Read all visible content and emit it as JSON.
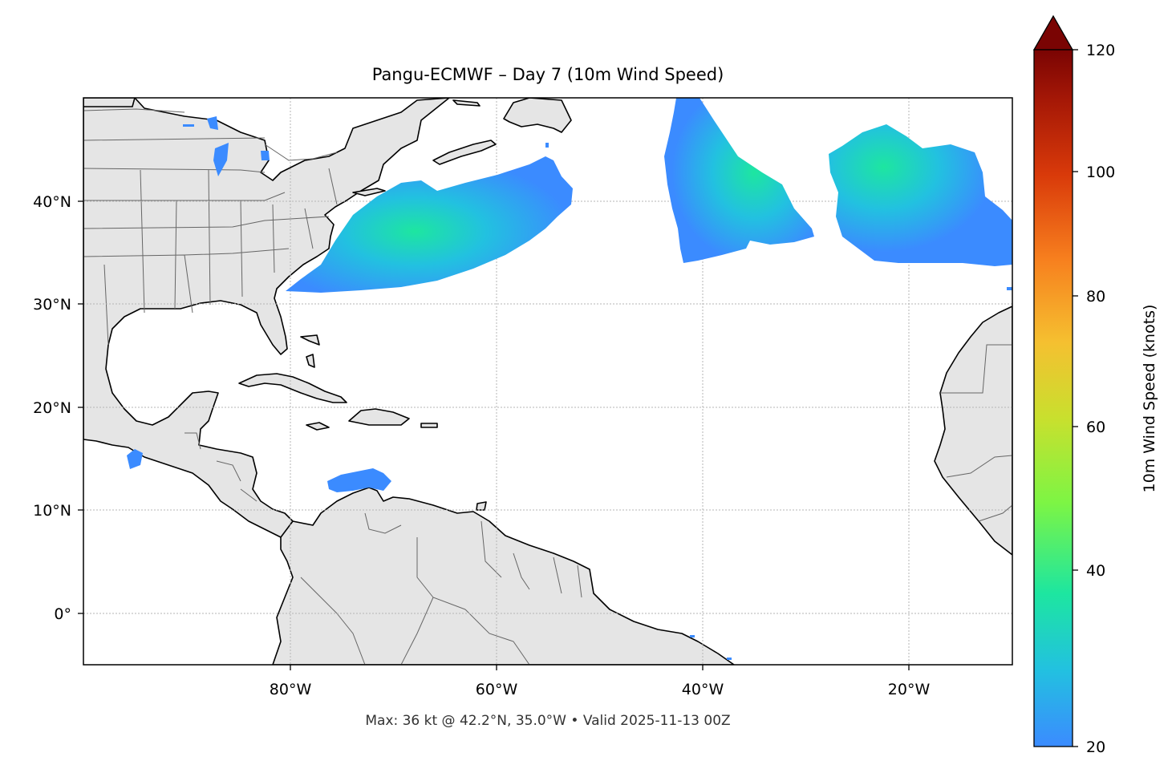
{
  "title": "Pangu-ECMWF – Day 7 (10m Wind Speed)",
  "footer": "Max: 36 kt @ 42.2°N, 35.0°W • Valid 2025-11-13 00Z",
  "map": {
    "lon_range": [
      -100,
      -10
    ],
    "lat_range": [
      -5,
      50
    ],
    "lon_ticks": [
      {
        "value": -80,
        "label": "80°W"
      },
      {
        "value": -60,
        "label": "60°W"
      },
      {
        "value": -40,
        "label": "40°W"
      },
      {
        "value": -20,
        "label": "20°W"
      }
    ],
    "lat_ticks": [
      {
        "value": 0,
        "label": "0°"
      },
      {
        "value": 10,
        "label": "10°N"
      },
      {
        "value": 20,
        "label": "20°N"
      },
      {
        "value": 30,
        "label": "30°N"
      },
      {
        "value": 40,
        "label": "40°N"
      }
    ],
    "gridlines": true,
    "land_color": "#e5e5e5",
    "ocean_color": "#ffffff",
    "coastline_color": "#000000",
    "border_color": "#666666"
  },
  "colorbar": {
    "label": "10m Wind Speed (knots)",
    "range": [
      20,
      120
    ],
    "extend": "max",
    "colormap": "turbo",
    "ticks": [
      {
        "value": 20,
        "label": "20"
      },
      {
        "value": 40,
        "label": "40"
      },
      {
        "value": 60,
        "label": "60"
      },
      {
        "value": 80,
        "label": "80"
      },
      {
        "value": 100,
        "label": "100"
      },
      {
        "value": 120,
        "label": "120"
      }
    ],
    "stops": [
      "#3b8bff",
      "#22c1e0",
      "#1de6a0",
      "#7df544",
      "#c8e02e",
      "#f5c030",
      "#f77f1e",
      "#d93a0a",
      "#a41706",
      "#7a0403"
    ]
  },
  "wind_features": [
    {
      "name": "us-east-coast-jet",
      "peak_kt": 33
    },
    {
      "name": "mid-atlantic-system",
      "peak_kt": 36
    },
    {
      "name": "eastern-atlantic-system",
      "peak_kt": 32
    },
    {
      "name": "caribbean-coast-patch",
      "peak_kt": 22
    },
    {
      "name": "pacific-mexico-patch",
      "peak_kt": 22
    }
  ]
}
